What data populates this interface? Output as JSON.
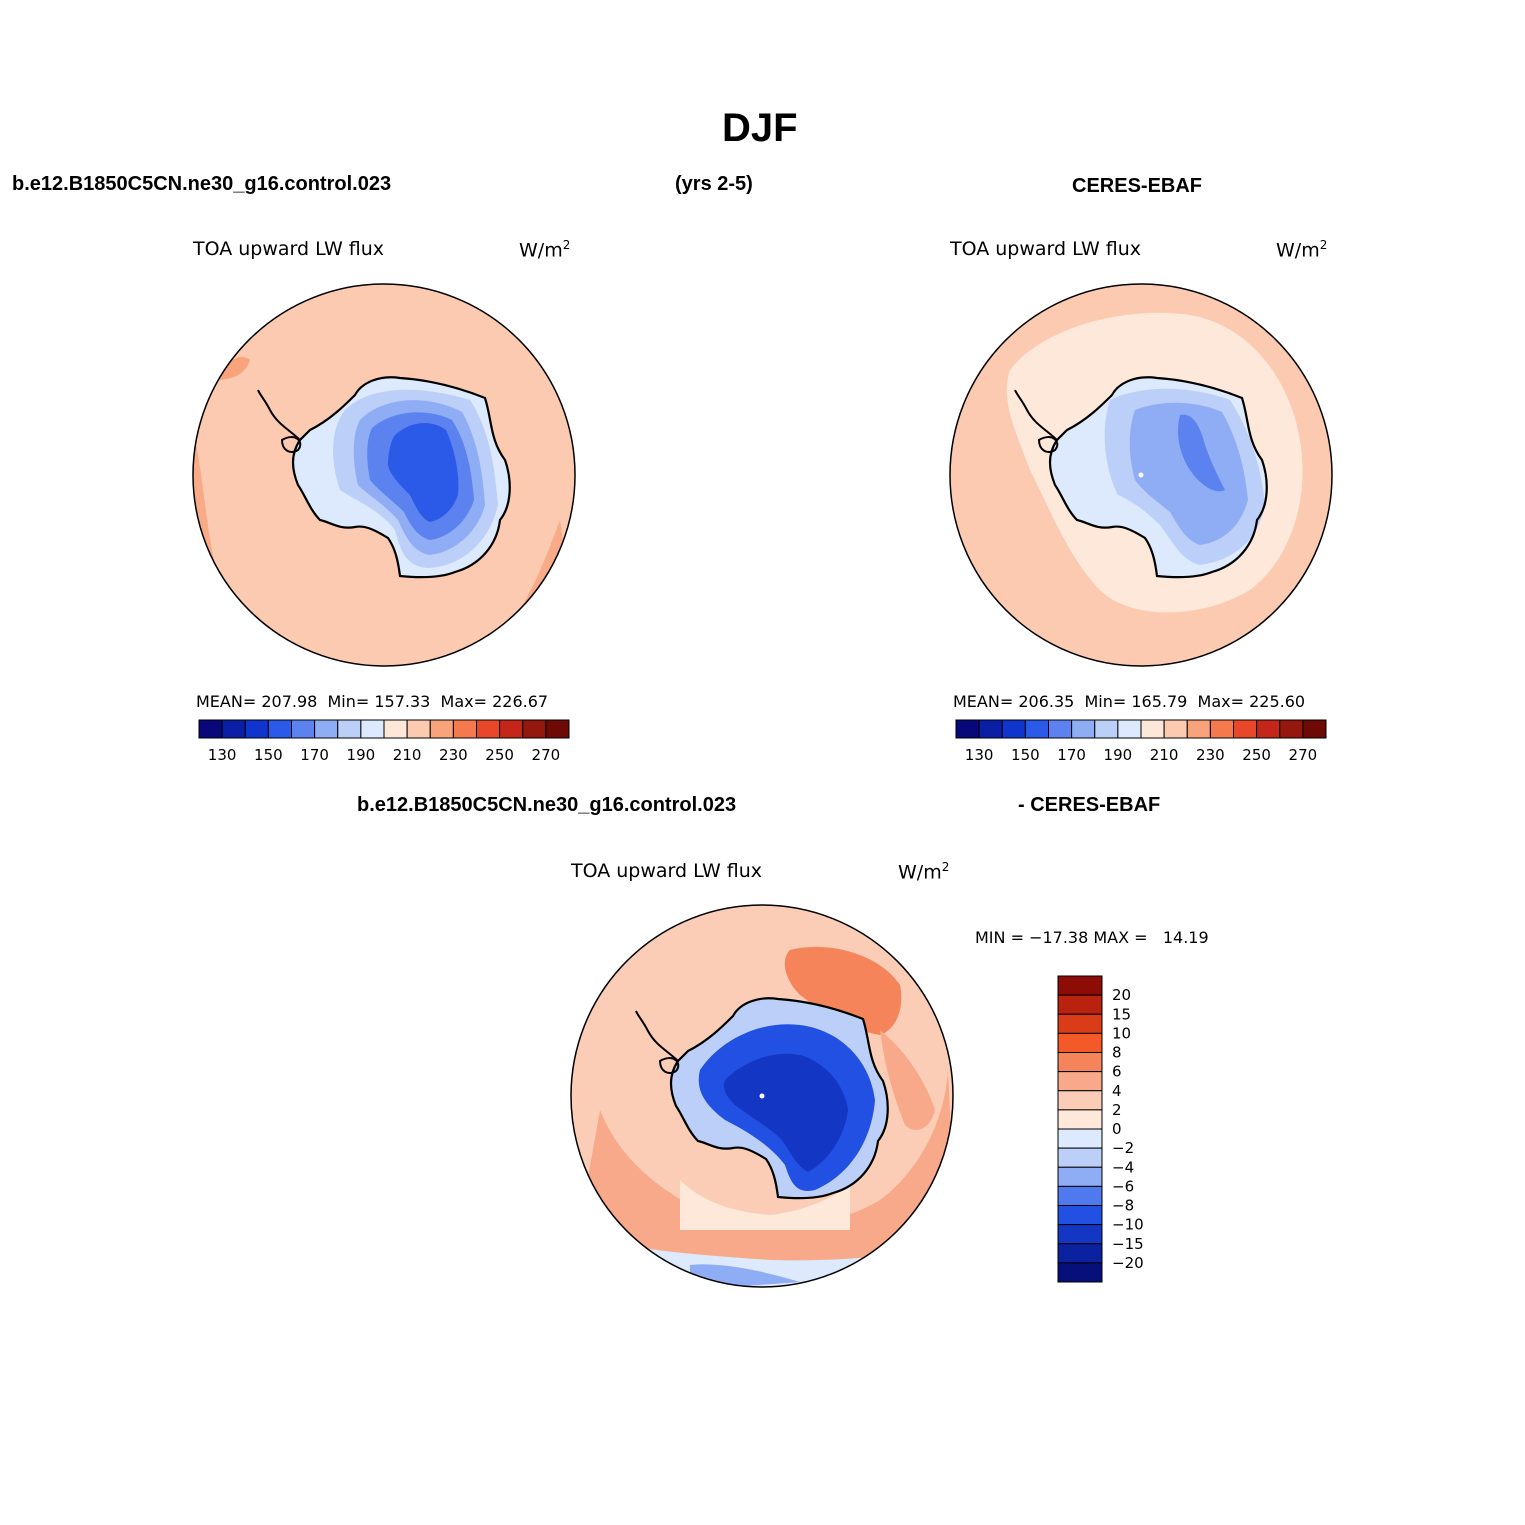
{
  "title": "DJF",
  "header": {
    "case": "b.e12.B1850C5CN.ne30_g16.control.023",
    "years": "(yrs 2-5)",
    "obs": "CERES-EBAF"
  },
  "diff_header": {
    "left": "b.e12.B1850C5CN.ne30_g16.control.023",
    "right": "- CERES-EBAF"
  },
  "variable": "TOA upward LW flux",
  "units": "W/m",
  "units_sup": "2",
  "panels": [
    {
      "mean_label": "MEAN=",
      "mean": "207.98",
      "min_label": "Min=",
      "min": "157.33",
      "max_label": "Max=",
      "max": "226.67"
    },
    {
      "mean_label": "MEAN=",
      "mean": "206.35",
      "min_label": "Min=",
      "min": "165.79",
      "max_label": "Max=",
      "max": "225.60"
    },
    {
      "minmax_text": "MIN = −17.38 MAX =   14.19"
    }
  ],
  "colorbar_main": {
    "colors": [
      "#08087a",
      "#0a1fa6",
      "#1035cc",
      "#2b59e8",
      "#5b82ef",
      "#8fadf4",
      "#bccff9",
      "#dde9fc",
      "#fde7d8",
      "#fbcab0",
      "#f8a37c",
      "#f47a4e",
      "#e8472a",
      "#c4271a",
      "#95180f",
      "#6e0a05"
    ],
    "tick_labels": [
      "130",
      "150",
      "170",
      "190",
      "210",
      "230",
      "250",
      "270"
    ]
  },
  "colorbar_diff": {
    "colors": [
      "#8e0c06",
      "#b8220f",
      "#da3c18",
      "#f45a28",
      "#f5845b",
      "#f7a989",
      "#fbcdb6",
      "#fde8da",
      "#dde9fc",
      "#bccff9",
      "#8fadf4",
      "#4f79ee",
      "#2250e3",
      "#1336c5",
      "#0b22a0",
      "#07107a"
    ],
    "tick_labels": [
      "20",
      "15",
      "10",
      "8",
      "6",
      "4",
      "2",
      "0",
      "−2",
      "−4",
      "−6",
      "−8",
      "−10",
      "−15",
      "−20"
    ]
  }
}
